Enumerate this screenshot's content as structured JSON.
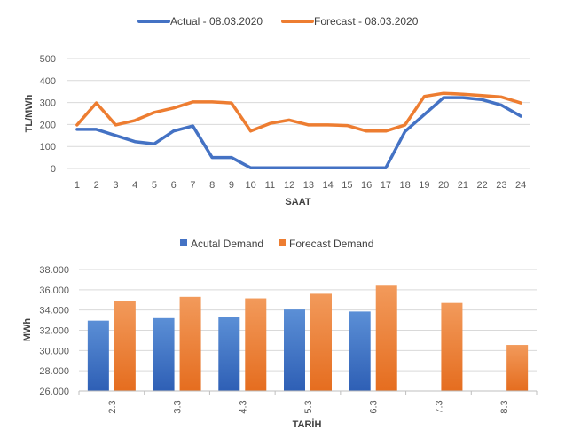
{
  "chart_data": [
    {
      "type": "line",
      "xlabel": "SAAT",
      "ylabel": "TL/MWh",
      "ylim": [
        0,
        500
      ],
      "yticks": [
        0,
        100,
        200,
        300,
        400,
        500
      ],
      "grid": true,
      "legend": "top",
      "x": [
        1,
        2,
        3,
        4,
        5,
        6,
        7,
        8,
        9,
        10,
        11,
        12,
        13,
        14,
        15,
        16,
        17,
        18,
        19,
        20,
        21,
        22,
        23,
        24
      ],
      "series": [
        {
          "name": "Actual - 08.03.2020",
          "color": "#4472c4",
          "values": [
            178,
            178,
            150,
            122,
            112,
            170,
            193,
            50,
            50,
            3,
            3,
            3,
            3,
            3,
            3,
            3,
            3,
            168,
            245,
            322,
            322,
            313,
            288,
            238
          ]
        },
        {
          "name": "Forecast - 08.03.2020",
          "color": "#ed7d31",
          "values": [
            198,
            298,
            198,
            218,
            255,
            275,
            303,
            303,
            298,
            170,
            205,
            220,
            198,
            198,
            195,
            170,
            170,
            198,
            328,
            342,
            338,
            332,
            325,
            298
          ]
        }
      ]
    },
    {
      "type": "bar",
      "xlabel": "TARİH",
      "ylabel": "MWh",
      "ylim": [
        26000,
        38000
      ],
      "yticks": [
        "26.000",
        "28.000",
        "30.000",
        "32.000",
        "34.000",
        "36.000",
        "38.000"
      ],
      "grid": true,
      "legend": "top",
      "categories": [
        "2.3",
        "3.3",
        "4.3",
        "5.3",
        "6.3",
        "7.3",
        "8.3"
      ],
      "series": [
        {
          "name": "Acutal Demand",
          "color": "#4472c4",
          "values": [
            32950,
            33200,
            33300,
            34050,
            33850,
            null,
            null
          ]
        },
        {
          "name": "Forecast Demand",
          "color": "#ed7d31",
          "values": [
            34900,
            35300,
            35150,
            35600,
            36400,
            34700,
            30550
          ]
        }
      ]
    }
  ]
}
